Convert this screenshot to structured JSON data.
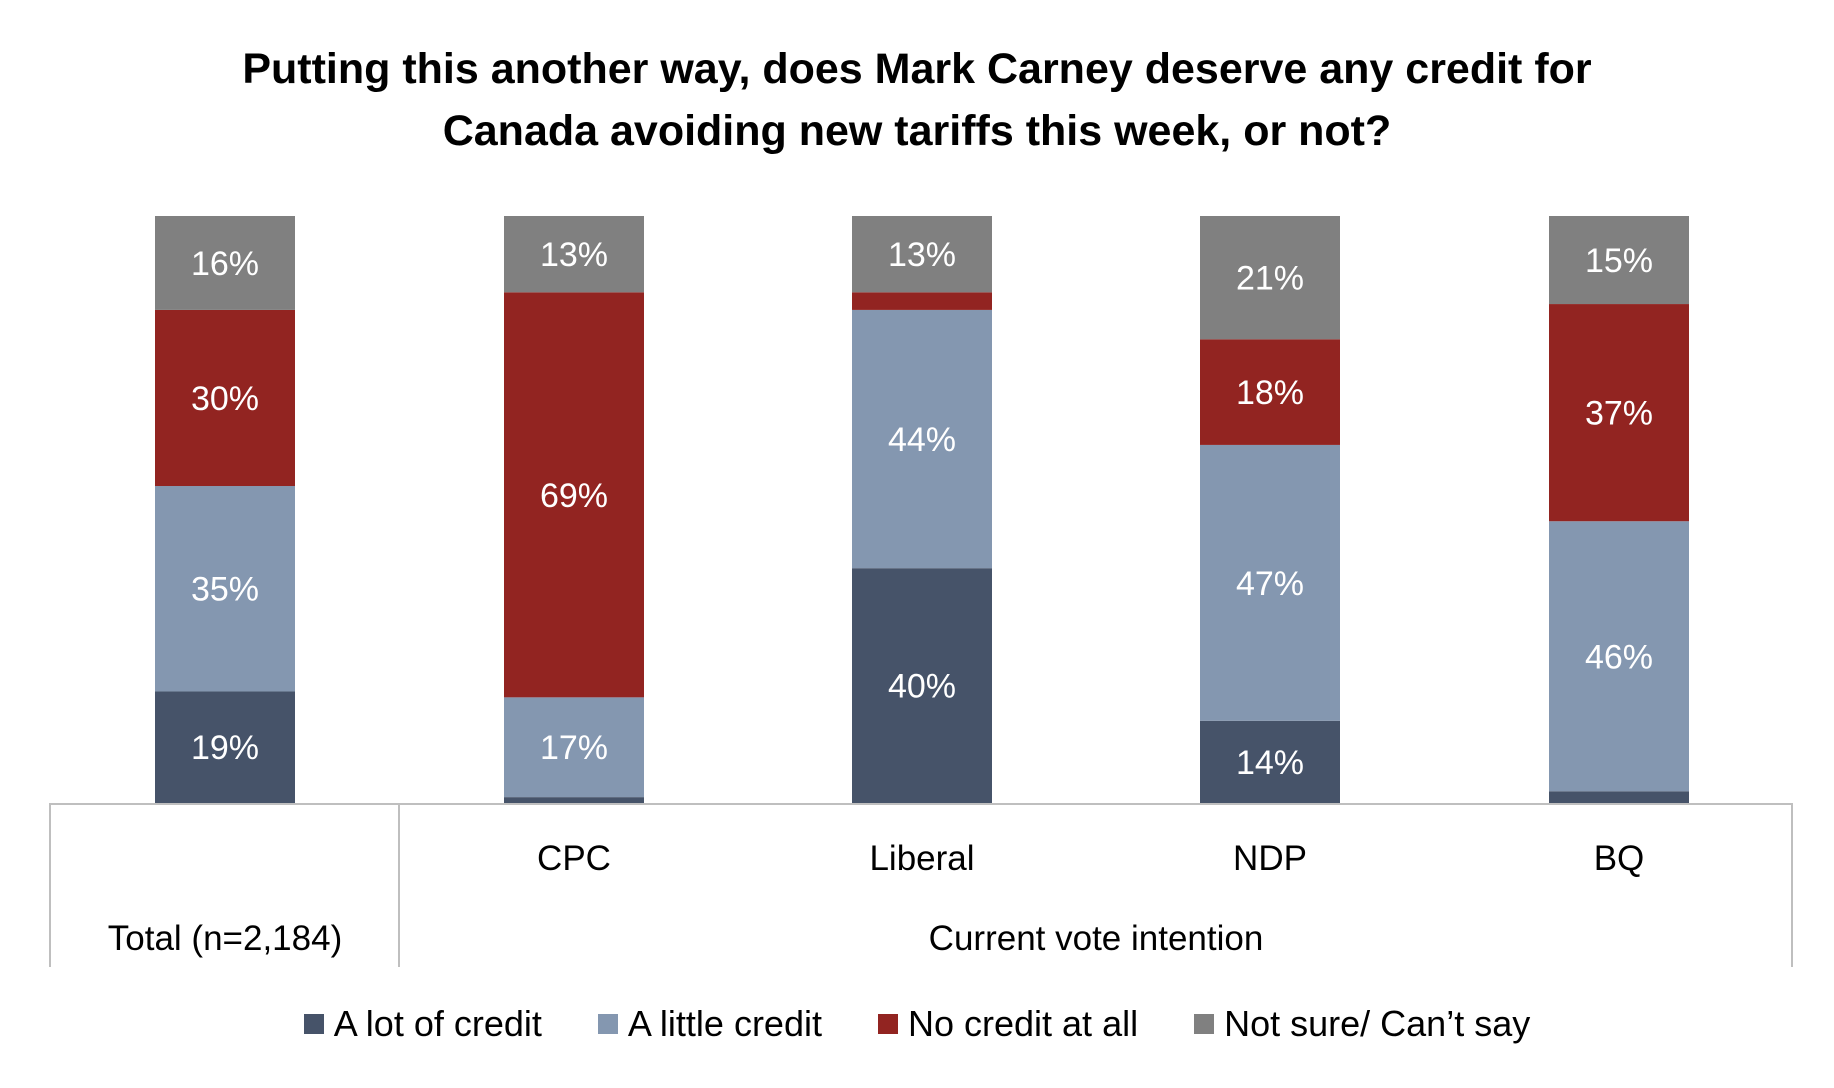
{
  "chart_data": {
    "type": "bar",
    "stacked": true,
    "percent": true,
    "title_lines": [
      "Putting this another way, does Mark Carney deserve any credit for",
      "Canada avoiding new tariffs this week, or not?"
    ],
    "categories": [
      "",
      "CPC",
      "Liberal",
      "NDP",
      "BQ"
    ],
    "group_labels": [
      "Total (n=2,184)",
      "Current vote intention"
    ],
    "ylim": [
      0,
      100
    ],
    "grid": false,
    "legend_position": "bottom",
    "series": [
      {
        "name": "A lot of credit",
        "color": "#465369",
        "values": [
          19,
          1,
          40,
          14,
          2
        ],
        "labels": [
          "19%",
          "",
          "40%",
          "14%",
          ""
        ]
      },
      {
        "name": "A little credit",
        "color": "#8497B0",
        "values": [
          35,
          17,
          44,
          47,
          46
        ],
        "labels": [
          "35%",
          "17%",
          "44%",
          "47%",
          "46%"
        ]
      },
      {
        "name": "No credit at all",
        "color": "#922421",
        "values": [
          30,
          69,
          3,
          18,
          37
        ],
        "labels": [
          "30%",
          "69%",
          "",
          "18%",
          "37%"
        ]
      },
      {
        "name": "Not sure/ Can’t say",
        "color": "#808080",
        "values": [
          16,
          13,
          13,
          21,
          15
        ],
        "labels": [
          "16%",
          "13%",
          "13%",
          "21%",
          "15%"
        ]
      }
    ]
  }
}
